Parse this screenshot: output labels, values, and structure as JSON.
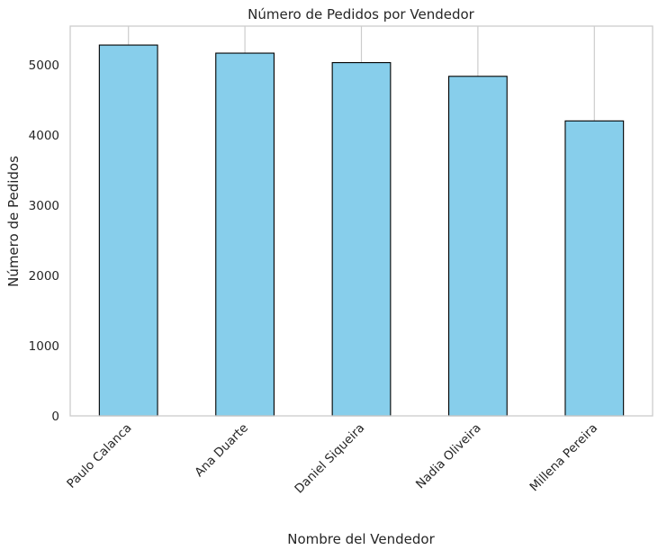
{
  "chart_data": {
    "type": "bar",
    "title": "Número de Pedidos por Vendedor",
    "xlabel": "Nombre del Vendedor",
    "ylabel": "Número de Pedidos",
    "categories": [
      "Paulo Calanca",
      "Ana Duarte",
      "Daniel Siqueira",
      "Nadia Oliveira",
      "Millena Pereira"
    ],
    "values": [
      5280,
      5165,
      5030,
      4835,
      4200
    ],
    "ylim": [
      0,
      5550
    ],
    "yticks": [
      0,
      1000,
      2000,
      3000,
      4000,
      5000
    ],
    "ytick_labels": [
      "0",
      "1000",
      "2000",
      "3000",
      "4000",
      "5000"
    ],
    "grid": "x",
    "bar_color": "#87CEEB",
    "edge_color": "#000000",
    "grid_color": "#cccccc",
    "spine_color": "#cccccc"
  }
}
